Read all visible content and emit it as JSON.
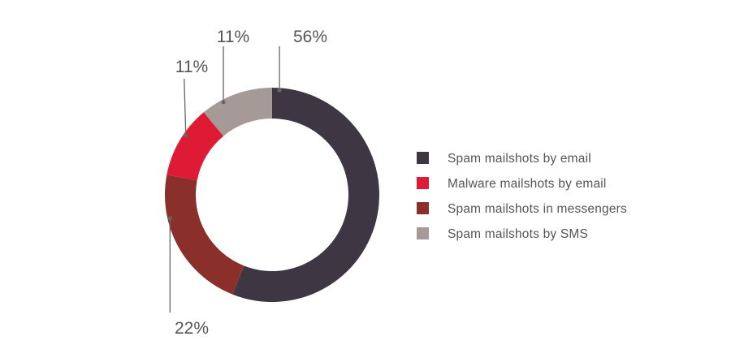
{
  "chart_data": {
    "type": "pie",
    "donut": true,
    "categories": [
      "Spam mailshots by email",
      "Malware mailshots by email",
      "Spam mailshots in messengers",
      "Spam mailshots by SMS"
    ],
    "values": [
      56,
      11,
      22,
      11
    ],
    "data_labels": [
      "56%",
      "11%",
      "22%",
      "11%"
    ],
    "colors": [
      "#3e3743",
      "#df1a35",
      "#8b2f2b",
      "#a69a96"
    ],
    "legend_position": "right",
    "title": ""
  }
}
